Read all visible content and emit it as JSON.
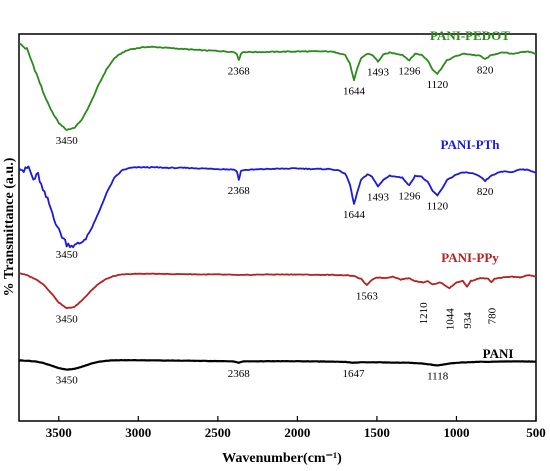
{
  "chart_data": {
    "type": "line",
    "title": "",
    "xlabel": "Wavenumber(cm⁻¹)",
    "ylabel": "% Transmittance (a.u.)",
    "xlim": [
      3750,
      500
    ],
    "x_ticks": [
      "3500",
      "3000",
      "2500",
      "2000",
      "1500",
      "1000",
      "500"
    ],
    "x_tick_values": [
      3500,
      3000,
      2500,
      2000,
      1500,
      1000,
      500
    ],
    "grid": false,
    "series": [
      {
        "name": "PANI-PEDOT",
        "color": "#2a8a1a",
        "offset": 3,
        "points": [
          [
            3750,
            0.95
          ],
          [
            3700,
            0.9
          ],
          [
            3650,
            0.72
          ],
          [
            3600,
            0.52
          ],
          [
            3550,
            0.36
          ],
          [
            3500,
            0.24
          ],
          [
            3450,
            0.18
          ],
          [
            3400,
            0.2
          ],
          [
            3350,
            0.28
          ],
          [
            3300,
            0.42
          ],
          [
            3250,
            0.58
          ],
          [
            3200,
            0.72
          ],
          [
            3150,
            0.82
          ],
          [
            3100,
            0.87
          ],
          [
            3050,
            0.9
          ],
          [
            3000,
            0.91
          ],
          [
            2950,
            0.92
          ],
          [
            2900,
            0.92
          ],
          [
            2850,
            0.915
          ],
          [
            2800,
            0.91
          ],
          [
            2700,
            0.9
          ],
          [
            2600,
            0.89
          ],
          [
            2500,
            0.885
          ],
          [
            2400,
            0.875
          ],
          [
            2380,
            0.86
          ],
          [
            2368,
            0.8
          ],
          [
            2355,
            0.86
          ],
          [
            2340,
            0.875
          ],
          [
            2200,
            0.875
          ],
          [
            2000,
            0.88
          ],
          [
            1900,
            0.88
          ],
          [
            1800,
            0.88
          ],
          [
            1750,
            0.87
          ],
          [
            1700,
            0.85
          ],
          [
            1670,
            0.77
          ],
          [
            1644,
            0.62
          ],
          [
            1625,
            0.72
          ],
          [
            1600,
            0.82
          ],
          [
            1560,
            0.86
          ],
          [
            1530,
            0.85
          ],
          [
            1493,
            0.79
          ],
          [
            1460,
            0.85
          ],
          [
            1420,
            0.87
          ],
          [
            1380,
            0.86
          ],
          [
            1340,
            0.85
          ],
          [
            1296,
            0.8
          ],
          [
            1260,
            0.86
          ],
          [
            1220,
            0.85
          ],
          [
            1180,
            0.8
          ],
          [
            1150,
            0.72
          ],
          [
            1120,
            0.68
          ],
          [
            1090,
            0.74
          ],
          [
            1060,
            0.8
          ],
          [
            1000,
            0.84
          ],
          [
            950,
            0.86
          ],
          [
            900,
            0.85
          ],
          [
            850,
            0.84
          ],
          [
            820,
            0.81
          ],
          [
            790,
            0.84
          ],
          [
            750,
            0.86
          ],
          [
            700,
            0.87
          ],
          [
            650,
            0.86
          ],
          [
            600,
            0.87
          ],
          [
            550,
            0.88
          ],
          [
            500,
            0.86
          ]
        ]
      },
      {
        "name": "PANI-PTh",
        "color": "#1a1adc",
        "offset": 2,
        "points": [
          [
            3750,
            0.93
          ],
          [
            3720,
            0.88
          ],
          [
            3690,
            0.92
          ],
          [
            3660,
            0.8
          ],
          [
            3630,
            0.85
          ],
          [
            3600,
            0.7
          ],
          [
            3570,
            0.62
          ],
          [
            3540,
            0.5
          ],
          [
            3500,
            0.34
          ],
          [
            3450,
            0.22
          ],
          [
            3400,
            0.2
          ],
          [
            3350,
            0.24
          ],
          [
            3300,
            0.34
          ],
          [
            3250,
            0.5
          ],
          [
            3200,
            0.68
          ],
          [
            3150,
            0.82
          ],
          [
            3100,
            0.89
          ],
          [
            3050,
            0.91
          ],
          [
            3000,
            0.915
          ],
          [
            2900,
            0.915
          ],
          [
            2800,
            0.91
          ],
          [
            2700,
            0.91
          ],
          [
            2600,
            0.905
          ],
          [
            2500,
            0.9
          ],
          [
            2400,
            0.895
          ],
          [
            2380,
            0.88
          ],
          [
            2368,
            0.8
          ],
          [
            2355,
            0.88
          ],
          [
            2340,
            0.89
          ],
          [
            2200,
            0.9
          ],
          [
            2000,
            0.905
          ],
          [
            1900,
            0.9
          ],
          [
            1800,
            0.9
          ],
          [
            1750,
            0.89
          ],
          [
            1700,
            0.86
          ],
          [
            1670,
            0.76
          ],
          [
            1644,
            0.58
          ],
          [
            1625,
            0.68
          ],
          [
            1600,
            0.8
          ],
          [
            1560,
            0.85
          ],
          [
            1530,
            0.83
          ],
          [
            1493,
            0.74
          ],
          [
            1460,
            0.8
          ],
          [
            1420,
            0.84
          ],
          [
            1380,
            0.83
          ],
          [
            1340,
            0.82
          ],
          [
            1296,
            0.75
          ],
          [
            1260,
            0.84
          ],
          [
            1220,
            0.83
          ],
          [
            1180,
            0.78
          ],
          [
            1150,
            0.7
          ],
          [
            1120,
            0.66
          ],
          [
            1090,
            0.72
          ],
          [
            1060,
            0.8
          ],
          [
            1000,
            0.85
          ],
          [
            950,
            0.87
          ],
          [
            900,
            0.86
          ],
          [
            850,
            0.83
          ],
          [
            820,
            0.79
          ],
          [
            790,
            0.83
          ],
          [
            750,
            0.86
          ],
          [
            700,
            0.88
          ],
          [
            650,
            0.87
          ],
          [
            600,
            0.9
          ],
          [
            550,
            0.89
          ],
          [
            500,
            0.87
          ]
        ]
      },
      {
        "name": "PANI-PPy",
        "color": "#b22222",
        "offset": 1,
        "points": [
          [
            3750,
            0.93
          ],
          [
            3700,
            0.9
          ],
          [
            3650,
            0.85
          ],
          [
            3600,
            0.78
          ],
          [
            3550,
            0.66
          ],
          [
            3500,
            0.52
          ],
          [
            3450,
            0.44
          ],
          [
            3400,
            0.46
          ],
          [
            3350,
            0.56
          ],
          [
            3300,
            0.68
          ],
          [
            3250,
            0.78
          ],
          [
            3200,
            0.85
          ],
          [
            3150,
            0.89
          ],
          [
            3100,
            0.91
          ],
          [
            3000,
            0.92
          ],
          [
            2900,
            0.92
          ],
          [
            2800,
            0.915
          ],
          [
            2700,
            0.915
          ],
          [
            2600,
            0.91
          ],
          [
            2500,
            0.91
          ],
          [
            2400,
            0.905
          ],
          [
            2368,
            0.9
          ],
          [
            2300,
            0.905
          ],
          [
            2200,
            0.91
          ],
          [
            2000,
            0.91
          ],
          [
            1900,
            0.905
          ],
          [
            1800,
            0.905
          ],
          [
            1700,
            0.9
          ],
          [
            1650,
            0.89
          ],
          [
            1600,
            0.85
          ],
          [
            1563,
            0.76
          ],
          [
            1530,
            0.84
          ],
          [
            1500,
            0.87
          ],
          [
            1450,
            0.86
          ],
          [
            1400,
            0.88
          ],
          [
            1350,
            0.84
          ],
          [
            1300,
            0.86
          ],
          [
            1260,
            0.82
          ],
          [
            1210,
            0.8
          ],
          [
            1180,
            0.82
          ],
          [
            1150,
            0.77
          ],
          [
            1100,
            0.8
          ],
          [
            1044,
            0.72
          ],
          [
            1000,
            0.8
          ],
          [
            960,
            0.82
          ],
          [
            934,
            0.74
          ],
          [
            910,
            0.82
          ],
          [
            880,
            0.84
          ],
          [
            850,
            0.86
          ],
          [
            800,
            0.85
          ],
          [
            780,
            0.8
          ],
          [
            760,
            0.85
          ],
          [
            700,
            0.87
          ],
          [
            650,
            0.88
          ],
          [
            600,
            0.87
          ],
          [
            550,
            0.9
          ],
          [
            500,
            0.88
          ]
        ]
      },
      {
        "name": "PANI",
        "color": "#000000",
        "offset": 0,
        "points": [
          [
            3750,
            0.93
          ],
          [
            3700,
            0.92
          ],
          [
            3650,
            0.9
          ],
          [
            3600,
            0.86
          ],
          [
            3550,
            0.78
          ],
          [
            3500,
            0.7
          ],
          [
            3450,
            0.66
          ],
          [
            3400,
            0.68
          ],
          [
            3350,
            0.75
          ],
          [
            3300,
            0.83
          ],
          [
            3250,
            0.89
          ],
          [
            3200,
            0.92
          ],
          [
            3150,
            0.93
          ],
          [
            3100,
            0.935
          ],
          [
            3000,
            0.935
          ],
          [
            2900,
            0.93
          ],
          [
            2800,
            0.925
          ],
          [
            2700,
            0.92
          ],
          [
            2600,
            0.915
          ],
          [
            2500,
            0.91
          ],
          [
            2400,
            0.9
          ],
          [
            2368,
            0.86
          ],
          [
            2340,
            0.9
          ],
          [
            2200,
            0.905
          ],
          [
            2000,
            0.905
          ],
          [
            1900,
            0.9
          ],
          [
            1800,
            0.895
          ],
          [
            1700,
            0.885
          ],
          [
            1647,
            0.86
          ],
          [
            1600,
            0.875
          ],
          [
            1550,
            0.87
          ],
          [
            1500,
            0.875
          ],
          [
            1450,
            0.87
          ],
          [
            1400,
            0.865
          ],
          [
            1300,
            0.86
          ],
          [
            1250,
            0.85
          ],
          [
            1200,
            0.83
          ],
          [
            1150,
            0.8
          ],
          [
            1118,
            0.78
          ],
          [
            1080,
            0.81
          ],
          [
            1040,
            0.84
          ],
          [
            1000,
            0.86
          ],
          [
            900,
            0.88
          ],
          [
            850,
            0.89
          ],
          [
            800,
            0.885
          ],
          [
            700,
            0.9
          ],
          [
            600,
            0.9
          ],
          [
            500,
            0.895
          ]
        ]
      }
    ],
    "annotations": [
      {
        "series": "PANI-PEDOT",
        "label": "3450",
        "x": 3450
      },
      {
        "series": "PANI-PEDOT",
        "label": "2368",
        "x": 2368
      },
      {
        "series": "PANI-PEDOT",
        "label": "1644",
        "x": 1644
      },
      {
        "series": "PANI-PEDOT",
        "label": "1493",
        "x": 1493
      },
      {
        "series": "PANI-PEDOT",
        "label": "1296",
        "x": 1296
      },
      {
        "series": "PANI-PEDOT",
        "label": "1120",
        "x": 1120
      },
      {
        "series": "PANI-PEDOT",
        "label": "820",
        "x": 820
      },
      {
        "series": "PANI-PTh",
        "label": "3450",
        "x": 3450
      },
      {
        "series": "PANI-PTh",
        "label": "2368",
        "x": 2368
      },
      {
        "series": "PANI-PTh",
        "label": "1644",
        "x": 1644
      },
      {
        "series": "PANI-PTh",
        "label": "1493",
        "x": 1493
      },
      {
        "series": "PANI-PTh",
        "label": "1296",
        "x": 1296
      },
      {
        "series": "PANI-PTh",
        "label": "1120",
        "x": 1120
      },
      {
        "series": "PANI-PTh",
        "label": "820",
        "x": 820
      },
      {
        "series": "PANI-PPy",
        "label": "3450",
        "x": 3450
      },
      {
        "series": "PANI-PPy",
        "label": "1563",
        "x": 1563
      },
      {
        "series": "PANI-PPy",
        "label": "1210",
        "x": 1210,
        "vertical": true
      },
      {
        "series": "PANI-PPy",
        "label": "1044",
        "x": 1044,
        "vertical": true
      },
      {
        "series": "PANI-PPy",
        "label": "934",
        "x": 934,
        "vertical": true
      },
      {
        "series": "PANI-PPy",
        "label": "780",
        "x": 780,
        "vertical": true
      },
      {
        "series": "PANI",
        "label": "3450",
        "x": 3450
      },
      {
        "series": "PANI",
        "label": "2368",
        "x": 2368
      },
      {
        "series": "PANI",
        "label": "1647",
        "x": 1647
      },
      {
        "series": "PANI",
        "label": "1118",
        "x": 1118
      }
    ]
  }
}
